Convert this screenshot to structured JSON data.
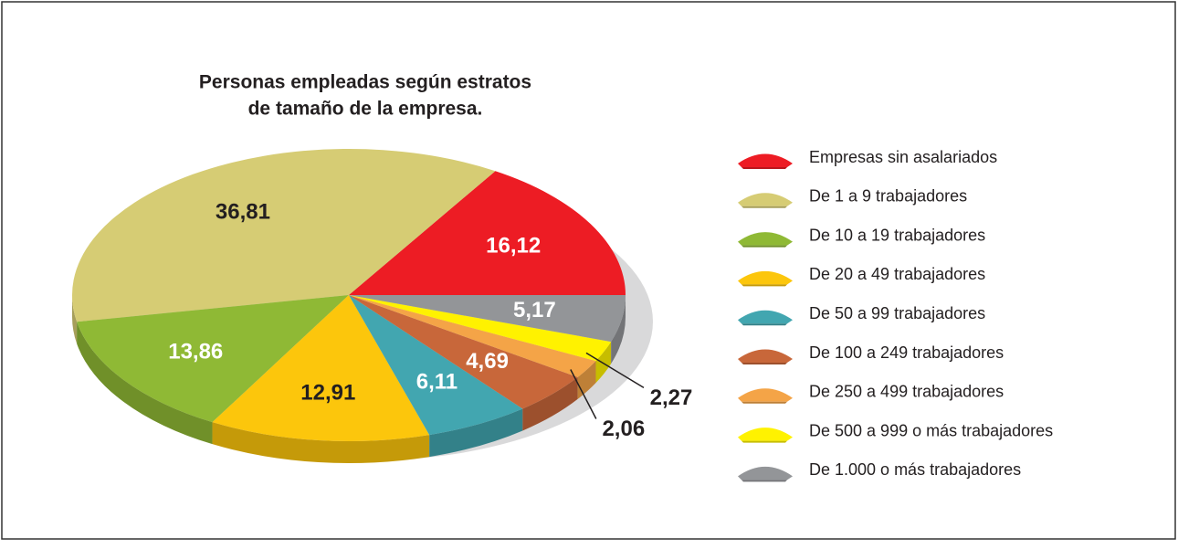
{
  "chart_data": {
    "type": "pie",
    "title": [
      "Personas empleadas según estratos",
      "de tamaño de la empresa."
    ],
    "categories": [
      "Empresas sin asalariados",
      "De 1 a 9 trabajadores",
      "De 10 a 19 trabajadores",
      "De 20 a 49 trabajadores",
      "De 50 a 99 trabajadores",
      "De 100 a 249 trabajadores",
      "De 250 a 499 trabajadores",
      "De 500 a 999 o más trabajadores",
      "De 1.000 o más trabajadores"
    ],
    "values": [
      16.12,
      36.81,
      13.86,
      12.91,
      6.11,
      4.69,
      2.06,
      2.27,
      5.17
    ],
    "value_labels": [
      "16,12",
      "36,81",
      "13,86",
      "12,91",
      "6,11",
      "4,69",
      "2,06",
      "2,27",
      "5,17"
    ],
    "colors": [
      "#ed1c24",
      "#d6cc74",
      "#8fb935",
      "#fcc60c",
      "#42a6b0",
      "#c8673a",
      "#f4a447",
      "#fff200",
      "#939598"
    ],
    "legend": "right"
  }
}
